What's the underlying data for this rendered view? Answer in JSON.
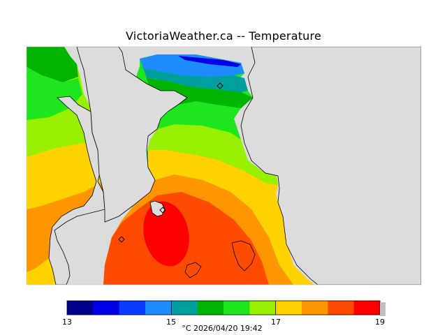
{
  "title": "VictoriaWeather.ca -- Temperature",
  "map": {
    "variable": "Temperature",
    "land_color": "#dcdcdc",
    "coastline_color": "#000000",
    "station_markers": [
      "station-marker-north",
      "station-marker-victoria",
      "station-marker-west"
    ]
  },
  "legend": {
    "min_label": "13",
    "mid_label_1": "15",
    "mid_label_2": "17",
    "max_label": "19",
    "caption": "°C  2026/04/20 19:42",
    "unit": "°C",
    "timestamp": "2026/04/20 19:42",
    "range": [
      13,
      19
    ],
    "step": 0.5,
    "colors": [
      "#00008b",
      "#0000e6",
      "#0a3cff",
      "#1e8cff",
      "#00a0a0",
      "#00b400",
      "#1ee61e",
      "#96f000",
      "#ffd200",
      "#ff9600",
      "#ff4b00",
      "#ff0000"
    ]
  }
}
